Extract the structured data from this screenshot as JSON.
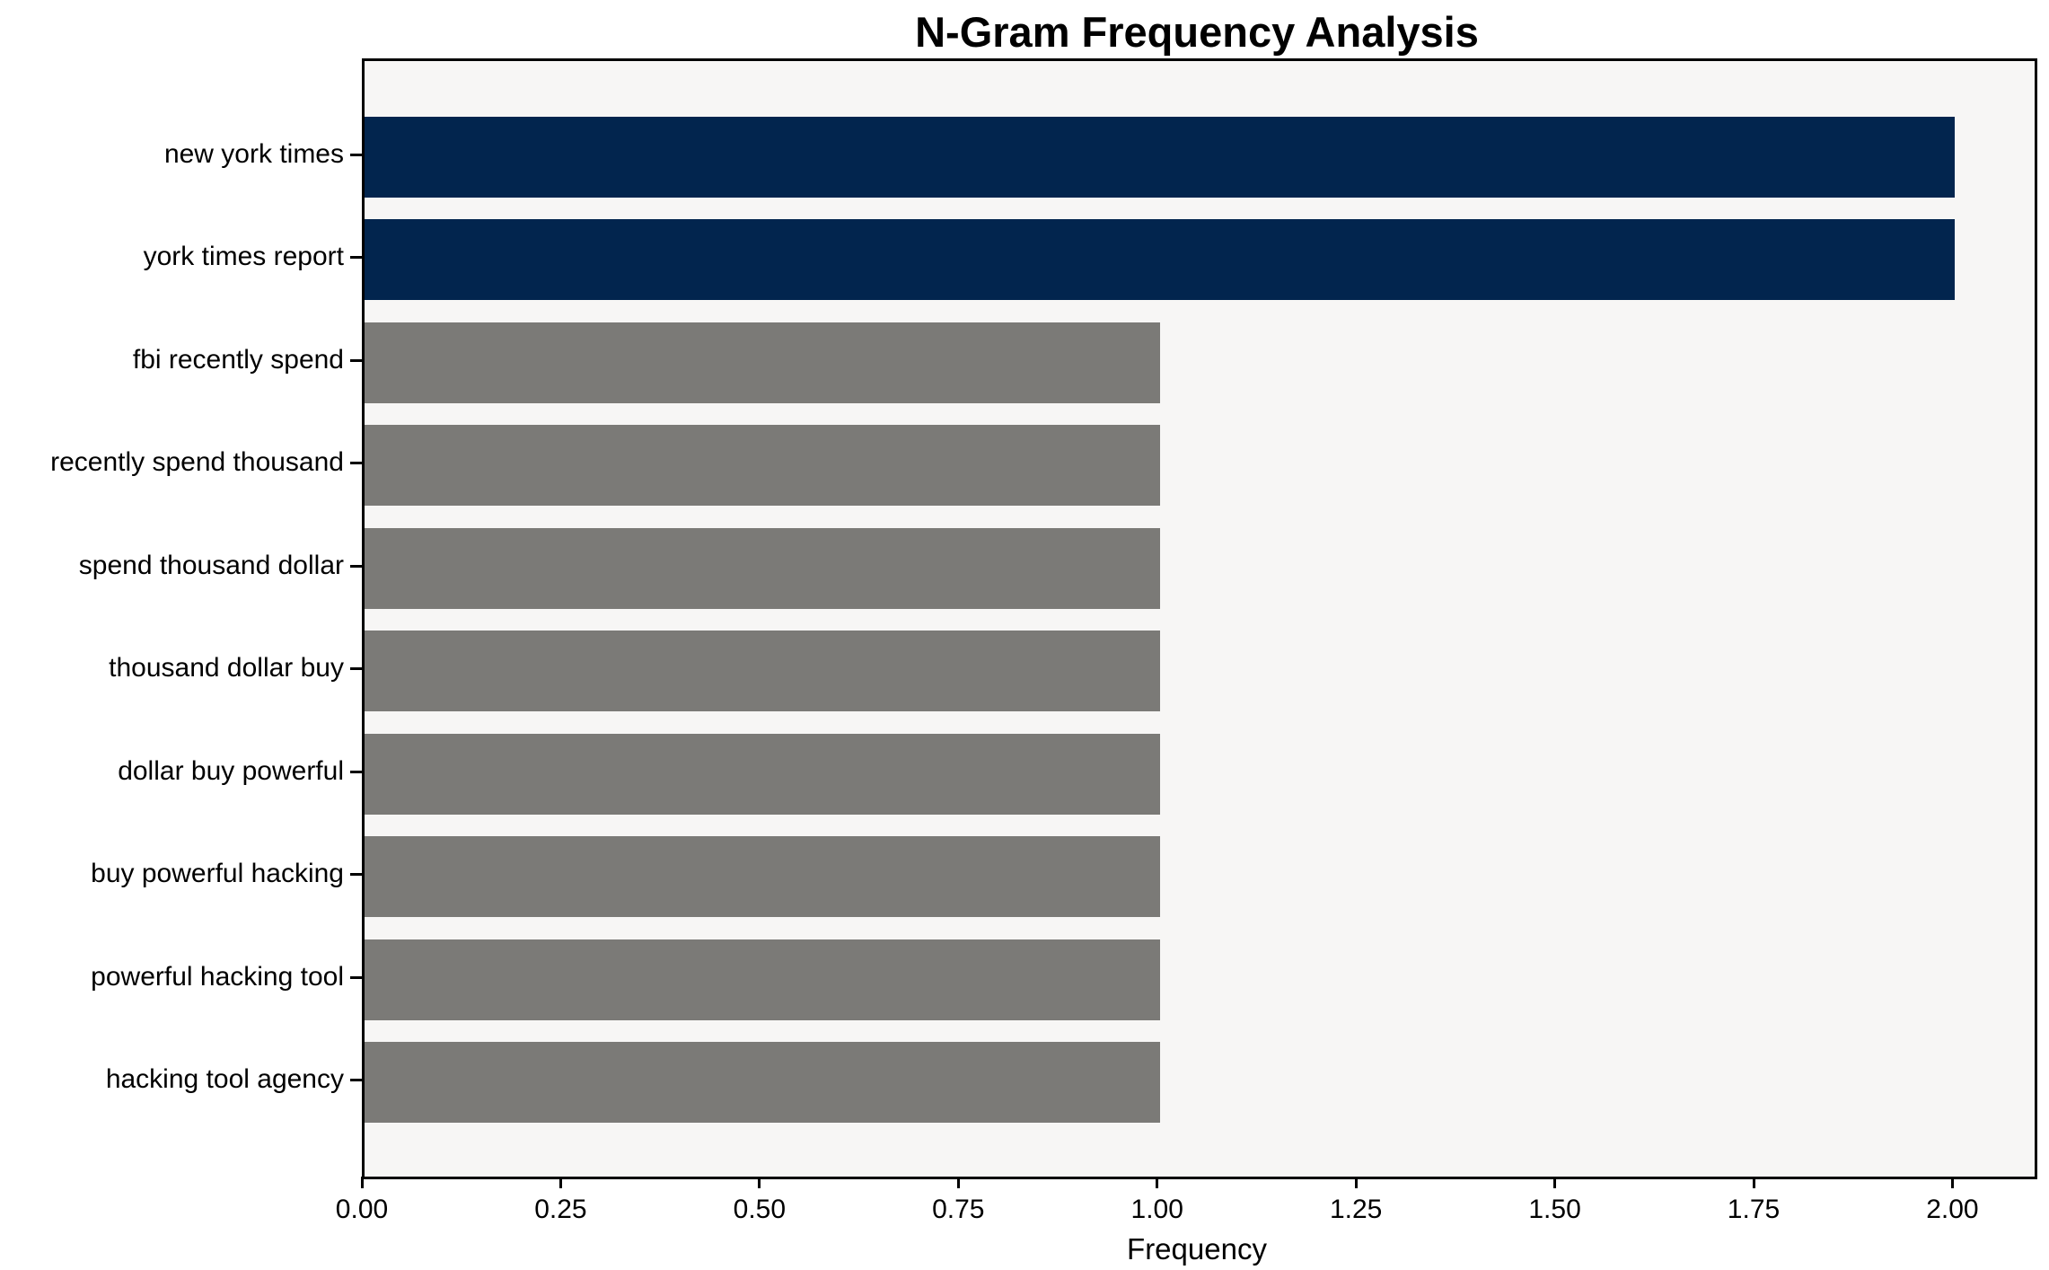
{
  "chart_data": {
    "type": "bar",
    "orientation": "horizontal",
    "title": "N-Gram Frequency Analysis",
    "xlabel": "Frequency",
    "ylabel": "",
    "categories": [
      "new york times",
      "york times report",
      "fbi recently spend",
      "recently spend thousand",
      "spend thousand dollar",
      "thousand dollar buy",
      "dollar buy powerful",
      "buy powerful hacking",
      "powerful hacking tool",
      "hacking tool agency"
    ],
    "values": [
      2,
      2,
      1,
      1,
      1,
      1,
      1,
      1,
      1,
      1
    ],
    "bar_colors": [
      "#02254e",
      "#02254e",
      "#7b7a77",
      "#7b7a77",
      "#7b7a77",
      "#7b7a77",
      "#7b7a77",
      "#7b7a77",
      "#7b7a77",
      "#7b7a77"
    ],
    "xlim": [
      0,
      2.1
    ],
    "x_ticks": {
      "values": [
        0.0,
        0.25,
        0.5,
        0.75,
        1.0,
        1.25,
        1.5,
        1.75,
        2.0
      ],
      "labels": [
        "0.00",
        "0.25",
        "0.50",
        "0.75",
        "1.00",
        "1.25",
        "1.50",
        "1.75",
        "2.00"
      ]
    },
    "grid": false,
    "legend": null,
    "colors": {
      "highlight": "#02254e",
      "default": "#7b7a77",
      "plot_background": "#f7f6f5",
      "figure_background": "#ffffff",
      "axis": "#000000"
    }
  }
}
